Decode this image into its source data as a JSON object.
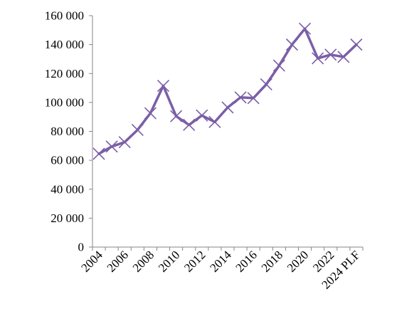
{
  "chart_data": {
    "type": "line",
    "title": "",
    "xlabel": "",
    "ylabel": "",
    "categories": [
      "2004",
      "2005",
      "2006",
      "2007",
      "2008",
      "2009",
      "2010",
      "2011",
      "2012",
      "2013",
      "2014",
      "2015",
      "2016",
      "2017",
      "2018",
      "2019",
      "2020",
      "2021",
      "2022",
      "2023",
      "2024 PLF"
    ],
    "x_tick_labels": [
      "2004",
      "",
      "2006",
      "",
      "2008",
      "",
      "2010",
      "",
      "2012",
      "",
      "2014",
      "",
      "2016",
      "",
      "2018",
      "",
      "2020",
      "",
      "2022",
      "",
      "2024 PLF"
    ],
    "series": [
      {
        "color": "#7b5ea7",
        "marker": "x",
        "values": [
          64500,
          69500,
          72500,
          81000,
          92500,
          111500,
          90500,
          84500,
          91000,
          86500,
          96500,
          103500,
          103000,
          112500,
          125500,
          140000,
          151000,
          130500,
          133000,
          131500,
          140000
        ]
      }
    ],
    "ylim": [
      0,
      160000
    ],
    "y_ticks": [
      0,
      20000,
      40000,
      60000,
      80000,
      100000,
      120000,
      140000,
      160000
    ],
    "y_tick_labels": [
      "0",
      "20 000",
      "40 000",
      "60 000",
      "80 000",
      "100 000",
      "120 000",
      "140 000",
      "160 000"
    ],
    "grid": false,
    "legend": "none"
  }
}
